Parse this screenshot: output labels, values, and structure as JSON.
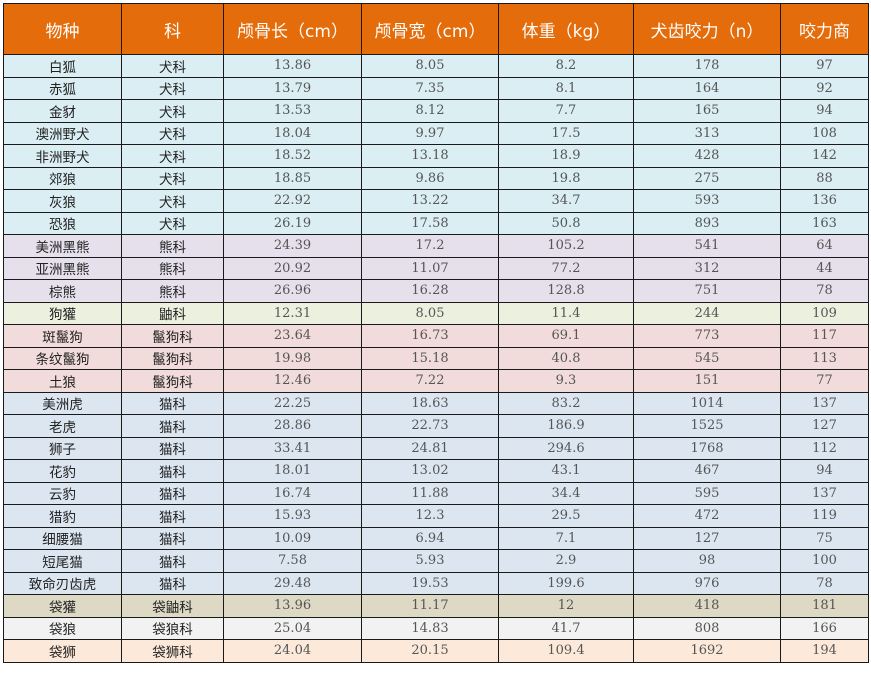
{
  "table": {
    "headers": [
      "物种",
      "科",
      "颅骨长（cm）",
      "颅骨宽（cm）",
      "体重（kg）",
      "犬齿咬力（n）",
      "咬力商"
    ],
    "header_color": "#e46c0a",
    "family_colors": {
      "犬科": "#daeef3",
      "熊科": "#e5e0ec",
      "鼬科": "#ebf1de",
      "鬣狗科": "#f2dcdb",
      "猫科": "#dce6f1",
      "袋鼬科": "#ddd9c4",
      "袋狼科": "#f2f2f2",
      "袋狮科": "#fde9d9"
    },
    "rows": [
      {
        "species": "白狐",
        "family": "犬科",
        "skull_length": "13.86",
        "skull_width": "8.05",
        "weight": "8.2",
        "bite_force": "178",
        "bfq": "97",
        "color": "#daeef3"
      },
      {
        "species": "赤狐",
        "family": "犬科",
        "skull_length": "13.79",
        "skull_width": "7.35",
        "weight": "8.1",
        "bite_force": "164",
        "bfq": "92",
        "color": "#daeef3"
      },
      {
        "species": "金豺",
        "family": "犬科",
        "skull_length": "13.53",
        "skull_width": "8.12",
        "weight": "7.7",
        "bite_force": "165",
        "bfq": "94",
        "color": "#daeef3"
      },
      {
        "species": "澳洲野犬",
        "family": "犬科",
        "skull_length": "18.04",
        "skull_width": "9.97",
        "weight": "17.5",
        "bite_force": "313",
        "bfq": "108",
        "color": "#daeef3"
      },
      {
        "species": "非洲野犬",
        "family": "犬科",
        "skull_length": "18.52",
        "skull_width": "13.18",
        "weight": "18.9",
        "bite_force": "428",
        "bfq": "142",
        "color": "#daeef3"
      },
      {
        "species": "郊狼",
        "family": "犬科",
        "skull_length": "18.85",
        "skull_width": "9.86",
        "weight": "19.8",
        "bite_force": "275",
        "bfq": "88",
        "color": "#daeef3"
      },
      {
        "species": "灰狼",
        "family": "犬科",
        "skull_length": "22.92",
        "skull_width": "13.22",
        "weight": "34.7",
        "bite_force": "593",
        "bfq": "136",
        "color": "#daeef3"
      },
      {
        "species": "恐狼",
        "family": "犬科",
        "skull_length": "26.19",
        "skull_width": "17.58",
        "weight": "50.8",
        "bite_force": "893",
        "bfq": "163",
        "color": "#daeef3"
      },
      {
        "species": "美洲黑熊",
        "family": "熊科",
        "skull_length": "24.39",
        "skull_width": "17.2",
        "weight": "105.2",
        "bite_force": "541",
        "bfq": "64",
        "color": "#e5e0ec"
      },
      {
        "species": "亚洲黑熊",
        "family": "熊科",
        "skull_length": "20.92",
        "skull_width": "11.07",
        "weight": "77.2",
        "bite_force": "312",
        "bfq": "44",
        "color": "#e5e0ec"
      },
      {
        "species": "棕熊",
        "family": "熊科",
        "skull_length": "26.96",
        "skull_width": "16.28",
        "weight": "128.8",
        "bite_force": "751",
        "bfq": "78",
        "color": "#e5e0ec"
      },
      {
        "species": "狗獾",
        "family": "鼬科",
        "skull_length": "12.31",
        "skull_width": "8.05",
        "weight": "11.4",
        "bite_force": "244",
        "bfq": "109",
        "color": "#ebf1de"
      },
      {
        "species": "斑鬣狗",
        "family": "鬣狗科",
        "skull_length": "23.64",
        "skull_width": "16.73",
        "weight": "69.1",
        "bite_force": "773",
        "bfq": "117",
        "color": "#f2dcdb"
      },
      {
        "species": "条纹鬣狗",
        "family": "鬣狗科",
        "skull_length": "19.98",
        "skull_width": "15.18",
        "weight": "40.8",
        "bite_force": "545",
        "bfq": "113",
        "color": "#f2dcdb"
      },
      {
        "species": "土狼",
        "family": "鬣狗科",
        "skull_length": "12.46",
        "skull_width": "7.22",
        "weight": "9.3",
        "bite_force": "151",
        "bfq": "77",
        "color": "#f2dcdb"
      },
      {
        "species": "美洲虎",
        "family": "猫科",
        "skull_length": "22.25",
        "skull_width": "18.63",
        "weight": "83.2",
        "bite_force": "1014",
        "bfq": "137",
        "color": "#dce6f1"
      },
      {
        "species": "老虎",
        "family": "猫科",
        "skull_length": "28.86",
        "skull_width": "22.73",
        "weight": "186.9",
        "bite_force": "1525",
        "bfq": "127",
        "color": "#dce6f1"
      },
      {
        "species": "狮子",
        "family": "猫科",
        "skull_length": "33.41",
        "skull_width": "24.81",
        "weight": "294.6",
        "bite_force": "1768",
        "bfq": "112",
        "color": "#dce6f1"
      },
      {
        "species": "花豹",
        "family": "猫科",
        "skull_length": "18.01",
        "skull_width": "13.02",
        "weight": "43.1",
        "bite_force": "467",
        "bfq": "94",
        "color": "#dce6f1"
      },
      {
        "species": "云豹",
        "family": "猫科",
        "skull_length": "16.74",
        "skull_width": "11.88",
        "weight": "34.4",
        "bite_force": "595",
        "bfq": "137",
        "color": "#dce6f1"
      },
      {
        "species": "猎豹",
        "family": "猫科",
        "skull_length": "15.93",
        "skull_width": "12.3",
        "weight": "29.5",
        "bite_force": "472",
        "bfq": "119",
        "color": "#dce6f1"
      },
      {
        "species": "细腰猫",
        "family": "猫科",
        "skull_length": "10.09",
        "skull_width": "6.94",
        "weight": "7.1",
        "bite_force": "127",
        "bfq": "75",
        "color": "#dce6f1"
      },
      {
        "species": "短尾猫",
        "family": "猫科",
        "skull_length": "7.58",
        "skull_width": "5.93",
        "weight": "2.9",
        "bite_force": "98",
        "bfq": "100",
        "color": "#dce6f1"
      },
      {
        "species": "致命刃齿虎",
        "family": "猫科",
        "skull_length": "29.48",
        "skull_width": "19.53",
        "weight": "199.6",
        "bite_force": "976",
        "bfq": "78",
        "color": "#dce6f1"
      },
      {
        "species": "袋獾",
        "family": "袋鼬科",
        "skull_length": "13.96",
        "skull_width": "11.17",
        "weight": "12",
        "bite_force": "418",
        "bfq": "181",
        "color": "#ddd9c4"
      },
      {
        "species": "袋狼",
        "family": "袋狼科",
        "skull_length": "25.04",
        "skull_width": "14.83",
        "weight": "41.7",
        "bite_force": "808",
        "bfq": "166",
        "color": "#f2f2f2"
      },
      {
        "species": "袋狮",
        "family": "袋狮科",
        "skull_length": "24.04",
        "skull_width": "20.15",
        "weight": "109.4",
        "bite_force": "1692",
        "bfq": "194",
        "color": "#fde9d9"
      }
    ]
  }
}
